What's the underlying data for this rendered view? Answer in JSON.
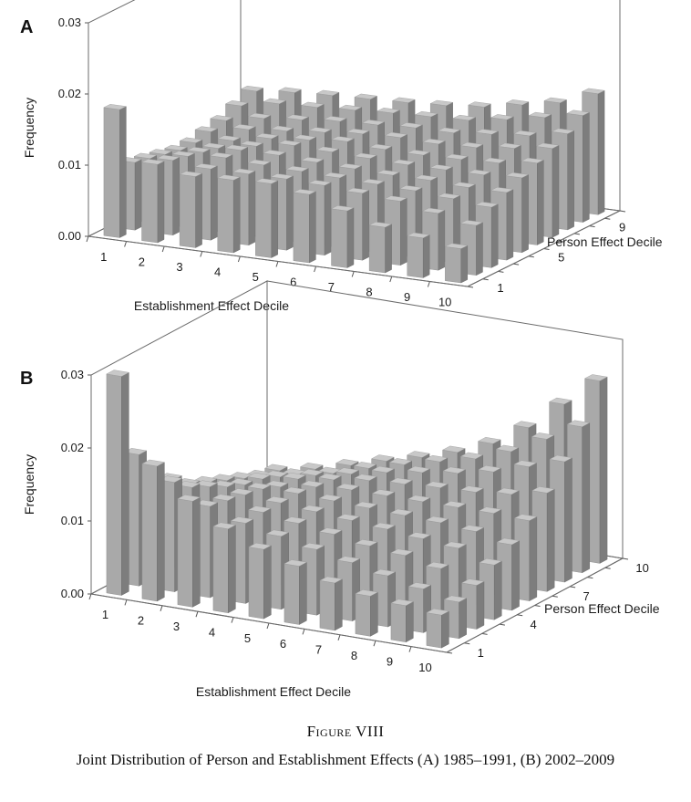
{
  "figure": {
    "number": "Figure VIII",
    "caption": "Joint Distribution of Person and Establishment Effects (A) 1985–1991, (B) 2002–2009"
  },
  "chart_data": [
    {
      "panel": "A",
      "type": "bar3d",
      "ylabel": "Frequency",
      "xlabel": "Establishment Effect Decile",
      "zlabel": "Person Effect Decile",
      "zlim": [
        0,
        0.03
      ],
      "z_ticks": [
        "0.00",
        "0.01",
        "0.02",
        "0.03"
      ],
      "x_ticks": [
        "1",
        "2",
        "3",
        "4",
        "5",
        "6",
        "7",
        "8",
        "9",
        "10"
      ],
      "y_ticks": [
        "1",
        "5",
        "9"
      ],
      "y_tick_positions": [
        1,
        5,
        9
      ],
      "grid": false,
      "rows_by_person_decile": [
        [
          0.018,
          0.011,
          0.01,
          0.0102,
          0.0104,
          0.0096,
          0.008,
          0.0064,
          0.0056,
          0.0048
        ],
        [
          0.0095,
          0.0105,
          0.01,
          0.01,
          0.01,
          0.0098,
          0.0094,
          0.009,
          0.008,
          0.007
        ],
        [
          0.009,
          0.01,
          0.0105,
          0.0102,
          0.01,
          0.0098,
          0.0096,
          0.0094,
          0.009,
          0.0085
        ],
        [
          0.0085,
          0.0095,
          0.0105,
          0.0105,
          0.0102,
          0.01,
          0.0098,
          0.0098,
          0.0095,
          0.0095
        ],
        [
          0.008,
          0.009,
          0.01,
          0.0108,
          0.0106,
          0.0104,
          0.0102,
          0.0102,
          0.0102,
          0.0105
        ],
        [
          0.008,
          0.009,
          0.01,
          0.0105,
          0.011,
          0.0106,
          0.0105,
          0.0106,
          0.0108,
          0.0115
        ],
        [
          0.0085,
          0.0095,
          0.01,
          0.0105,
          0.011,
          0.0112,
          0.011,
          0.0112,
          0.0118,
          0.0125
        ],
        [
          0.009,
          0.01,
          0.0105,
          0.011,
          0.0112,
          0.0115,
          0.0115,
          0.012,
          0.0125,
          0.0135
        ],
        [
          0.01,
          0.011,
          0.0112,
          0.0115,
          0.0118,
          0.012,
          0.0122,
          0.013,
          0.014,
          0.015
        ],
        [
          0.011,
          0.0115,
          0.0118,
          0.012,
          0.0122,
          0.0125,
          0.013,
          0.014,
          0.015,
          0.017
        ]
      ]
    },
    {
      "panel": "B",
      "type": "bar3d",
      "ylabel": "Frequency",
      "xlabel": "Establishment Effect Decile",
      "zlabel": "Person Effect Decile",
      "zlim": [
        0,
        0.03
      ],
      "z_ticks": [
        "0.00",
        "0.01",
        "0.02",
        "0.03"
      ],
      "x_ticks": [
        "1",
        "2",
        "3",
        "4",
        "5",
        "6",
        "7",
        "8",
        "9",
        "10"
      ],
      "y_ticks": [
        "1",
        "4",
        "7",
        "10"
      ],
      "y_tick_positions": [
        1,
        4,
        7,
        10
      ],
      "grid": false,
      "rows_by_person_decile": [
        [
          0.03,
          0.0185,
          0.0145,
          0.0115,
          0.0095,
          0.008,
          0.0065,
          0.0055,
          0.005,
          0.0045
        ],
        [
          0.018,
          0.015,
          0.0125,
          0.011,
          0.01,
          0.009,
          0.008,
          0.007,
          0.006,
          0.005
        ],
        [
          0.014,
          0.013,
          0.012,
          0.0112,
          0.0105,
          0.0098,
          0.009,
          0.0085,
          0.0075,
          0.006
        ],
        [
          0.012,
          0.0118,
          0.0115,
          0.0112,
          0.0108,
          0.0104,
          0.01,
          0.0095,
          0.009,
          0.0075
        ],
        [
          0.01,
          0.0105,
          0.011,
          0.0112,
          0.011,
          0.0108,
          0.0106,
          0.0104,
          0.01,
          0.009
        ],
        [
          0.009,
          0.0095,
          0.01,
          0.0108,
          0.0112,
          0.0112,
          0.0112,
          0.0112,
          0.0112,
          0.011
        ],
        [
          0.008,
          0.009,
          0.0098,
          0.0105,
          0.0112,
          0.0115,
          0.0118,
          0.012,
          0.0125,
          0.0135
        ],
        [
          0.007,
          0.008,
          0.009,
          0.01,
          0.011,
          0.0118,
          0.0125,
          0.0135,
          0.015,
          0.0165
        ],
        [
          0.006,
          0.007,
          0.008,
          0.0095,
          0.0108,
          0.012,
          0.0132,
          0.015,
          0.0175,
          0.02
        ],
        [
          0.0055,
          0.0065,
          0.0078,
          0.0092,
          0.0105,
          0.012,
          0.014,
          0.017,
          0.021,
          0.025
        ]
      ]
    }
  ]
}
